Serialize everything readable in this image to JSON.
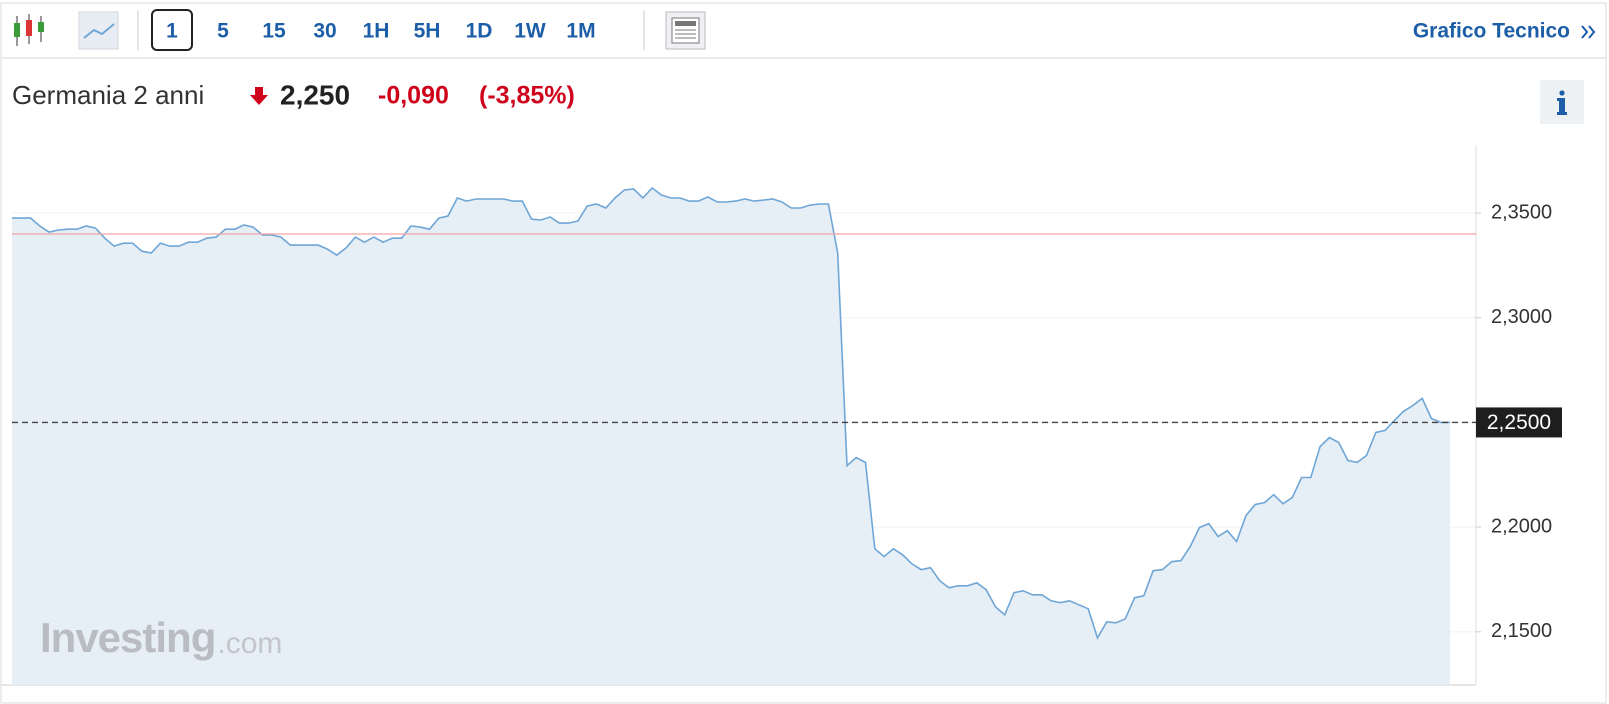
{
  "toolbar": {
    "intervals": [
      "1",
      "5",
      "15",
      "30",
      "1H",
      "5H",
      "1D",
      "1W",
      "1M"
    ],
    "link": "Grafico Tecnico"
  },
  "chart_data": {
    "type": "line",
    "title": "Germania 2 anni",
    "last": "2,250",
    "change": "-0,090",
    "change_pct": "(-3,85%)",
    "series": [
      {
        "color": "#6fa6d6",
        "fill": "#e6eef6",
        "values": [
          2.3476,
          2.3476,
          2.3476,
          2.3438,
          2.3409,
          2.3419,
          2.3423,
          2.3423,
          2.3438,
          2.3428,
          2.338,
          2.3342,
          2.3356,
          2.3356,
          2.3318,
          2.3309,
          2.3356,
          2.3342,
          2.3342,
          2.3361,
          2.3361,
          2.338,
          2.3385,
          2.3423,
          2.3423,
          2.3443,
          2.3433,
          2.3395,
          2.3395,
          2.3385,
          2.3347,
          2.3347,
          2.3347,
          2.3347,
          2.3328,
          2.3299,
          2.3333,
          2.3385,
          2.3361,
          2.3385,
          2.3361,
          2.338,
          2.338,
          2.3438,
          2.3433,
          2.3423,
          2.3476,
          2.3486,
          2.3572,
          2.3557,
          2.3567,
          2.3567,
          2.3567,
          2.3567,
          2.3557,
          2.3557,
          2.3471,
          2.3467,
          2.3481,
          2.3452,
          2.3452,
          2.3462,
          2.3533,
          2.3543,
          2.3524,
          2.3572,
          2.361,
          2.3615,
          2.3572,
          2.362,
          2.3586,
          2.3572,
          2.3572,
          2.3557,
          2.3557,
          2.3577,
          2.3553,
          2.3553,
          2.3557,
          2.3567,
          2.3557,
          2.3562,
          2.3567,
          2.3553,
          2.3524,
          2.3524,
          2.3538,
          2.3543,
          2.3543,
          2.3309,
          2.2294,
          2.2332,
          2.2309,
          2.1897,
          2.1859,
          2.1897,
          2.1868,
          2.1825,
          2.1797,
          2.1806,
          2.1744,
          2.171,
          2.172,
          2.172,
          2.1734,
          2.1701,
          2.162,
          2.1581,
          2.1687,
          2.1696,
          2.1677,
          2.1677,
          2.1648,
          2.1639,
          2.1648,
          2.1629,
          2.161,
          2.1471,
          2.1548,
          2.1543,
          2.1562,
          2.1663,
          2.1672,
          2.1792,
          2.1797,
          2.1835,
          2.184,
          2.1907,
          2.1998,
          2.2017,
          2.1955,
          2.1983,
          2.1931,
          2.2055,
          2.2108,
          2.2117,
          2.2155,
          2.2112,
          2.2141,
          2.2237,
          2.2237,
          2.2385,
          2.2428,
          2.2404,
          2.2318,
          2.2309,
          2.2342,
          2.2452,
          2.2462,
          2.2509,
          2.2553,
          2.2581,
          2.2615,
          2.2519,
          2.25,
          2.25
        ]
      }
    ],
    "reference_line": {
      "value": 2.34,
      "color": "#f4a3a3"
    },
    "last_price": {
      "value": 2.25,
      "label": "2,2500"
    },
    "ylim": [
      2.1246,
      2.3825
    ],
    "yticks": [
      {
        "value": 2.15,
        "label": "2,1500"
      },
      {
        "value": 2.2,
        "label": "2,2000"
      },
      {
        "value": 2.25,
        "label": "2,2500"
      },
      {
        "value": 2.3,
        "label": "2,3000"
      },
      {
        "value": 2.35,
        "label": "2,3500"
      }
    ],
    "grid": true,
    "watermark": {
      "brand": "Investing",
      "suffix": ".com"
    }
  }
}
